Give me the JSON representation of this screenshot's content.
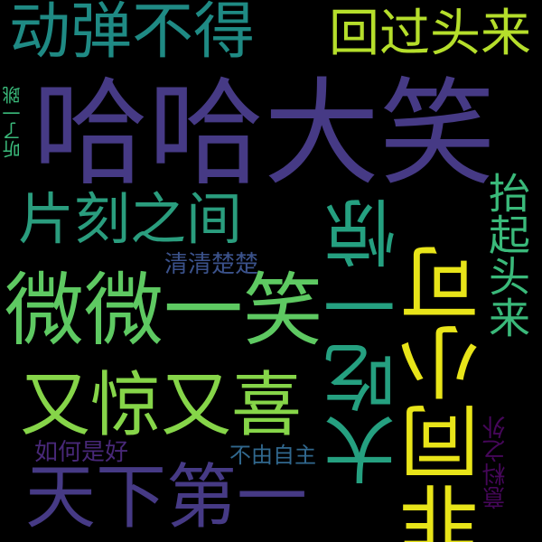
{
  "colors": {
    "background": "#000000",
    "teal_dark": "#1f8a84",
    "teal": "#25a080",
    "teal_green": "#2a9d7e",
    "green": "#3ab97a",
    "green_light": "#5ec962",
    "lime": "#86d549",
    "yellow_green": "#b5de2b",
    "yellow": "#e8e419",
    "indigo": "#463a85",
    "purple": "#482878",
    "deep_purple": "#46075a",
    "blue_teal": "#2c728e",
    "blue": "#31688e",
    "slate": "#3b528b"
  },
  "words": [
    {
      "id": "dongtan",
      "text": "动弹不得"
    },
    {
      "id": "huitou",
      "text": "回过头来"
    },
    {
      "id": "haha",
      "text": "哈哈大笑"
    },
    {
      "id": "tingle",
      "text": "听了一跳"
    },
    {
      "id": "pianke",
      "text": "片刻之间"
    },
    {
      "id": "yijing",
      "text": "一惊"
    },
    {
      "id": "taiqi",
      "text": "抬起头来"
    },
    {
      "id": "qingchu",
      "text": "清清楚楚"
    },
    {
      "id": "weiwei",
      "text": "微微一笑"
    },
    {
      "id": "feitong",
      "text": "非同小可"
    },
    {
      "id": "youjing",
      "text": "又惊又喜"
    },
    {
      "id": "dachi",
      "text": "大吃一惊"
    },
    {
      "id": "ruhe",
      "text": "如何是好"
    },
    {
      "id": "buyou",
      "text": "不由自主"
    },
    {
      "id": "yiliao",
      "text": "意料之外"
    },
    {
      "id": "tianxia",
      "text": "天下第一"
    }
  ]
}
